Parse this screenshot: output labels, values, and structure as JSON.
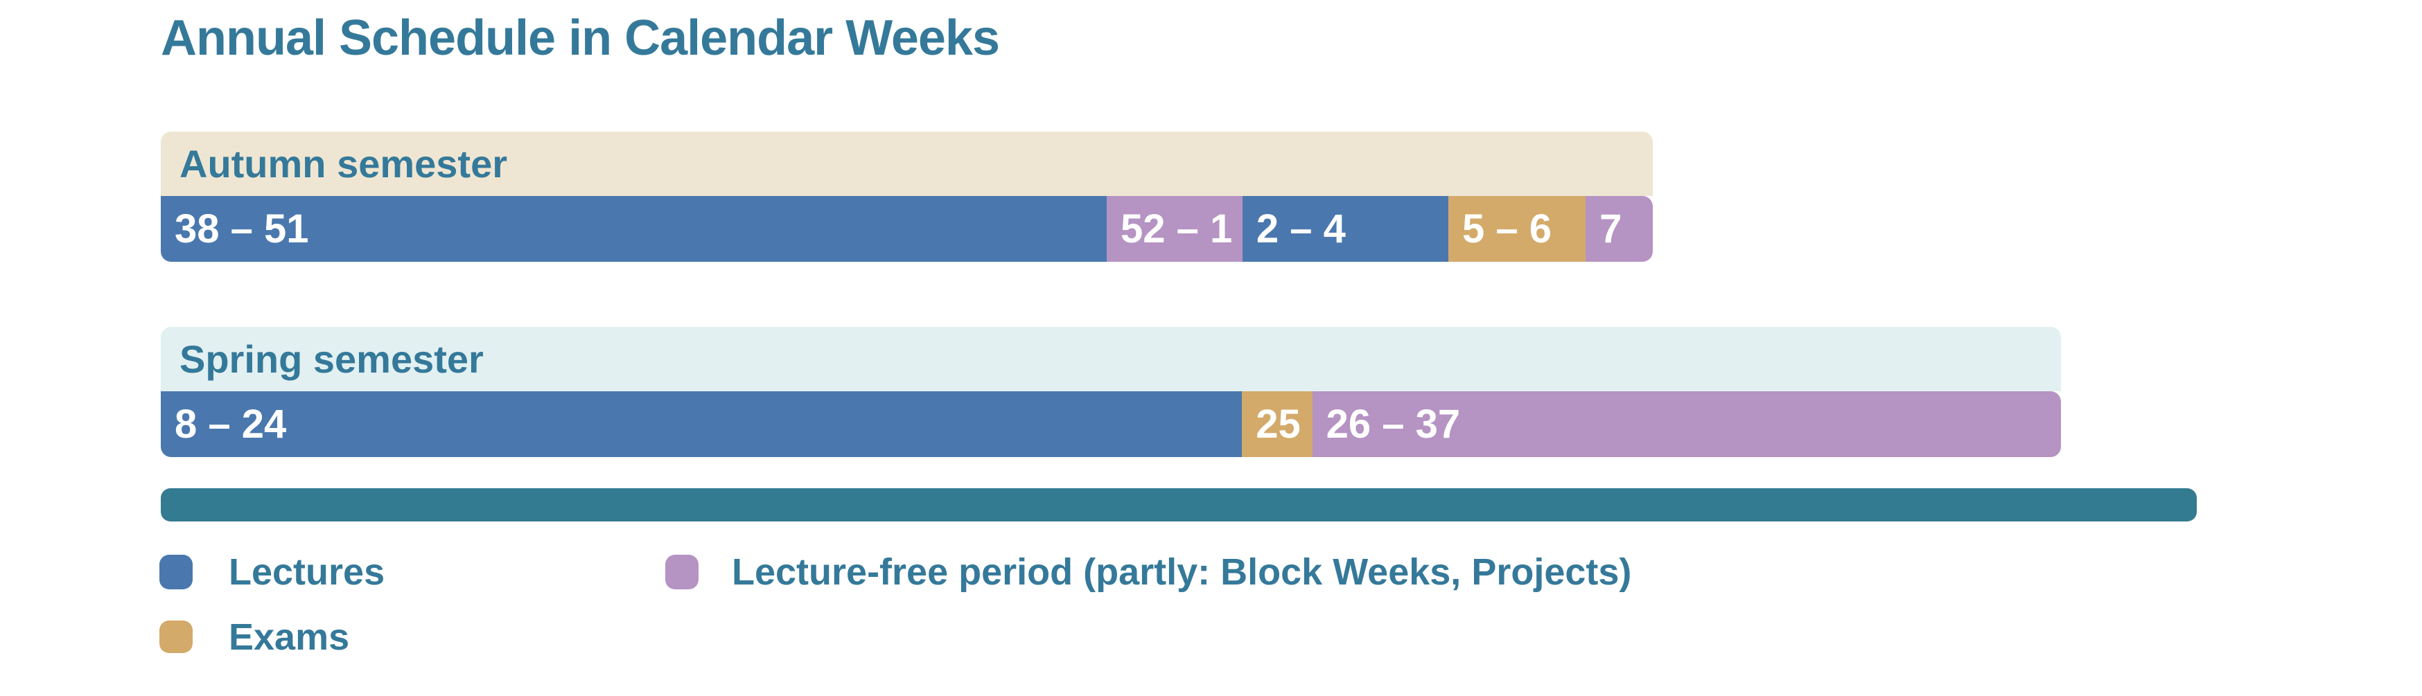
{
  "title": "Annual Schedule in Calendar Weeks",
  "colors": {
    "lectures": "#4a78ae",
    "exams": "#d3aa6a",
    "lecture_free": "#b593c3",
    "year_bar": "#337b91",
    "autumn_header_bg": "#eee6d3",
    "spring_header_bg": "#e2f0f1",
    "heading_text": "#35799a",
    "bar_label_text": "#ffffff"
  },
  "chart_data": {
    "type": "bar",
    "subtype": "timeline-segments",
    "title": "Annual Schedule in Calendar Weeks",
    "unit": "ISO calendar weeks",
    "legend_position": "bottom",
    "bars": [
      {
        "name": "Autumn semester",
        "header_bg_key": "autumn_header_bg",
        "total_weeks": 22,
        "segments": [
          {
            "label": "38 – 51",
            "weeks": 14,
            "category": "lectures",
            "width_pct": 63.4
          },
          {
            "label": "52 – 1",
            "weeks": 2,
            "category": "lecture_free",
            "width_pct": 9.1
          },
          {
            "label": "2 – 4",
            "weeks": 3,
            "category": "lectures",
            "width_pct": 13.8
          },
          {
            "label": "5 – 6",
            "weeks": 2,
            "category": "exams",
            "width_pct": 9.2
          },
          {
            "label": "7",
            "weeks": 1,
            "category": "lecture_free",
            "width_pct": 4.5
          }
        ]
      },
      {
        "name": "Spring semester",
        "header_bg_key": "spring_header_bg",
        "total_weeks": 30,
        "segments": [
          {
            "label": "8 – 24",
            "weeks": 17,
            "category": "lectures",
            "width_pct": 56.9
          },
          {
            "label": "25",
            "weeks": 1,
            "category": "exams",
            "width_pct": 3.7
          },
          {
            "label": "26 – 37",
            "weeks": 12,
            "category": "lecture_free",
            "width_pct": 39.4
          }
        ]
      }
    ],
    "legend": [
      {
        "label": "Lectures",
        "category": "lectures"
      },
      {
        "label": "Exams",
        "category": "exams"
      },
      {
        "label": "Lecture-free period (partly: Block Weeks, Projects)",
        "category": "lecture_free"
      }
    ]
  }
}
